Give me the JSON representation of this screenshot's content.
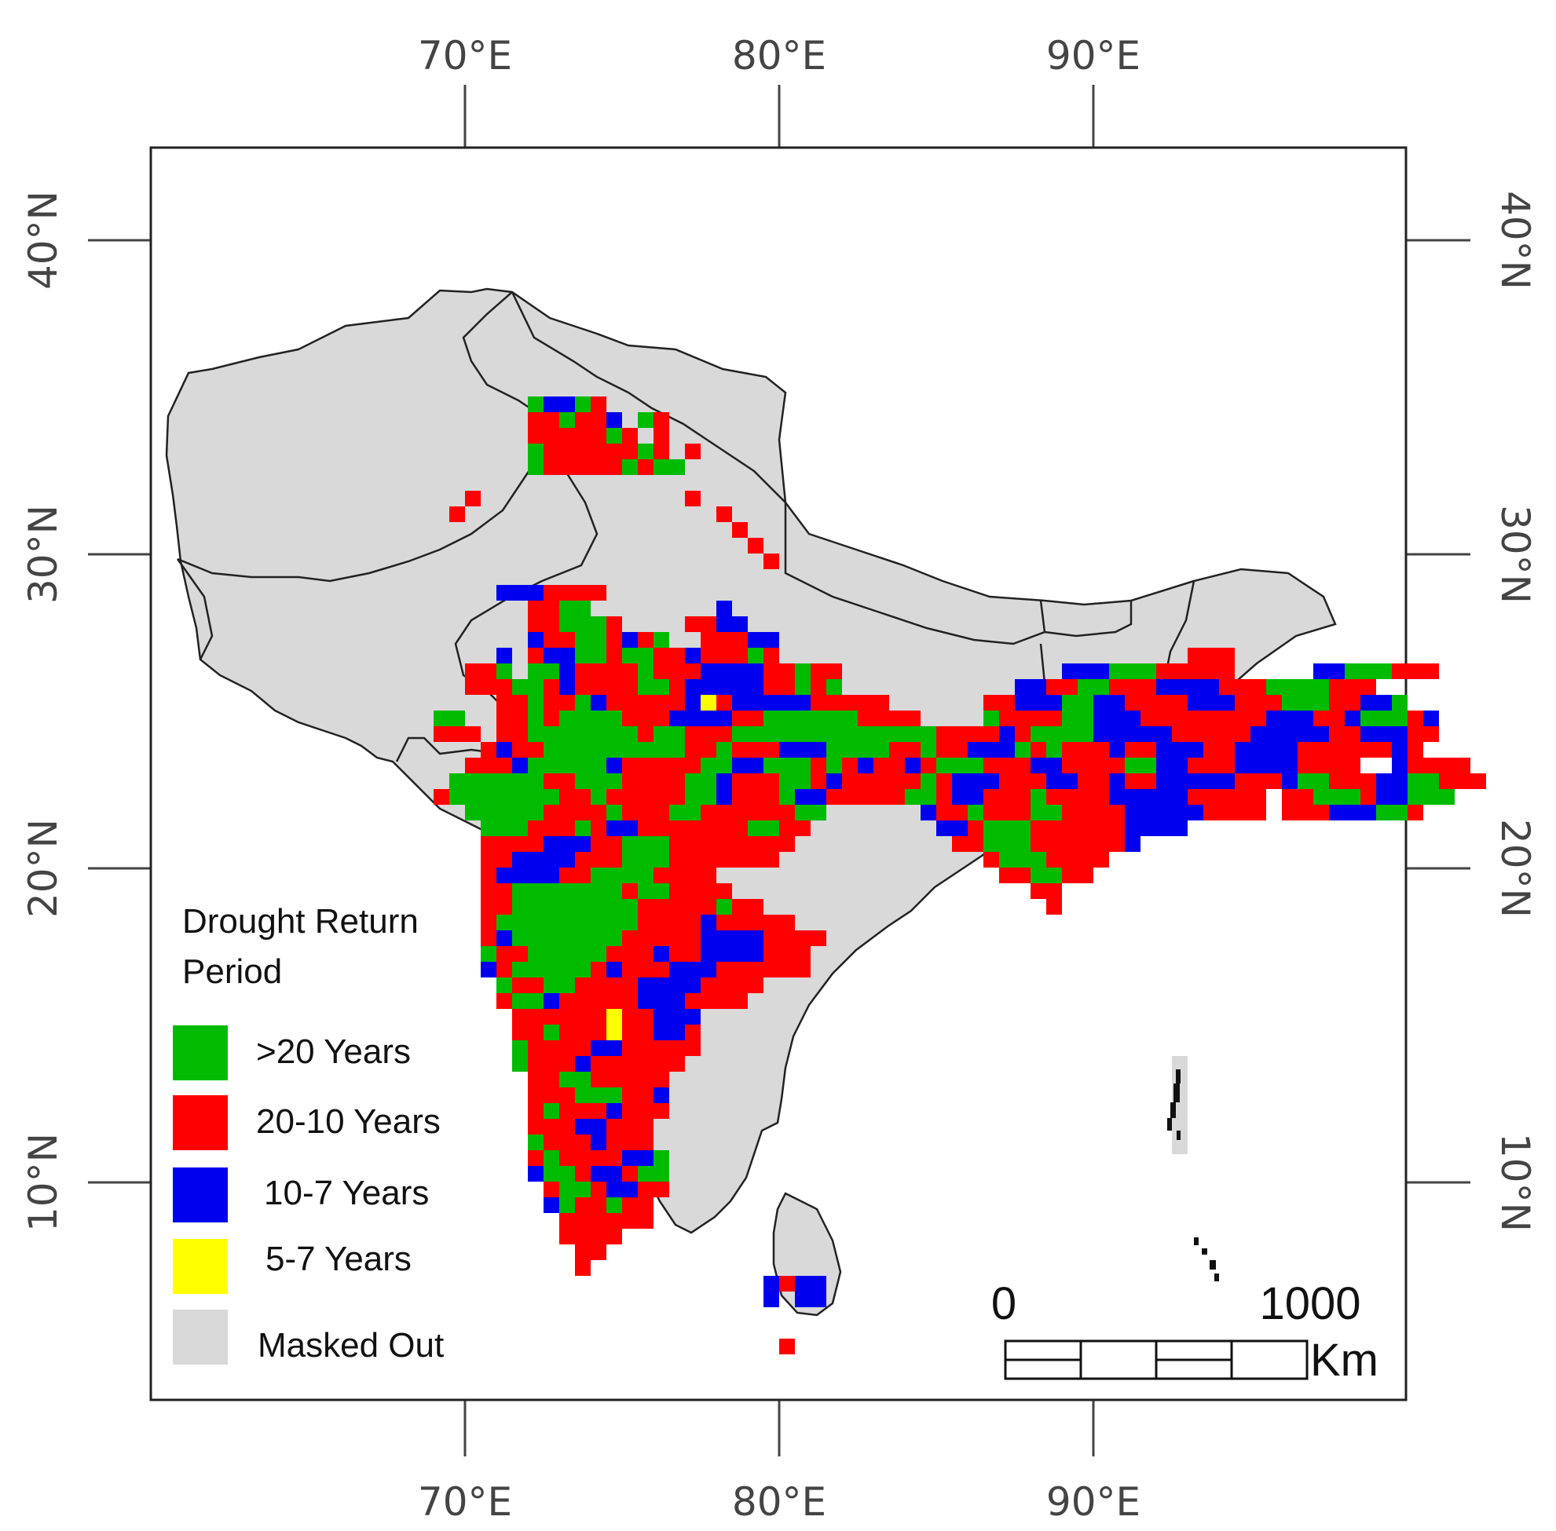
{
  "map": {
    "axes": {
      "top_lon_labels": [
        "70°E",
        "80°E",
        "90°E"
      ],
      "bottom_lon_labels": [
        "70°E",
        "80°E",
        "90°E"
      ],
      "left_lat_labels": [
        "40°N",
        "30°N",
        "20°N",
        "10°N"
      ],
      "right_lat_labels": [
        "40°N",
        "30°N",
        "20°N",
        "10°N"
      ]
    },
    "legend": {
      "title_line1": "Drought Return",
      "title_line2": "Period",
      "items": [
        {
          "label": ">20 Years",
          "color": "#00bb00"
        },
        {
          "label": "20-10 Years",
          "color": "#ff0000"
        },
        {
          "label": "10-7 Years",
          "color": "#0000ee"
        },
        {
          "label": "5-7 Years",
          "color": "#ffff00"
        },
        {
          "label": "Masked Out",
          "color": "#d9d9d9"
        }
      ]
    },
    "scale_bar": {
      "start_label": "0",
      "end_label": "1000",
      "unit": "Km"
    },
    "category_colors": {
      "G": "#00bb00",
      "R": "#ff0000",
      "B": "#0000ee",
      "Y": "#ffff00",
      "mask": "#d9d9d9",
      "border": "#222222"
    }
  }
}
